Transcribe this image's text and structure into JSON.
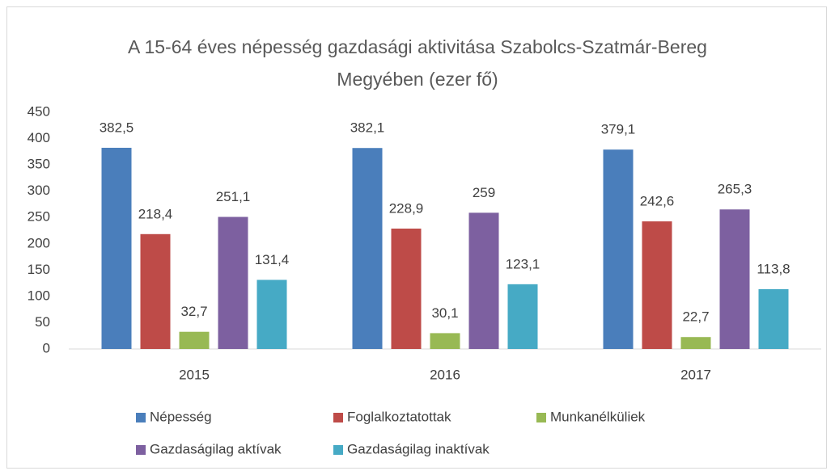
{
  "chart_data": {
    "type": "bar",
    "title": "A 15-64 éves népesség gazdasági aktivitása Szabolcs-Szatmár-Bereg Megyében (ezer fő)",
    "categories": [
      "2015",
      "2016",
      "2017"
    ],
    "series": [
      {
        "name": "Népesség",
        "color": "#4a7ebb",
        "values": [
          382.5,
          382.1,
          379.1
        ],
        "value_labels": [
          "382,5",
          "382,1",
          "379,1"
        ]
      },
      {
        "name": "Foglalkoztatottak",
        "color": "#be4b48",
        "values": [
          218.4,
          228.9,
          242.6
        ],
        "value_labels": [
          "218,4",
          "228,9",
          "242,6"
        ]
      },
      {
        "name": "Munkanélküliek",
        "color": "#98b954",
        "values": [
          32.7,
          30.1,
          22.7
        ],
        "value_labels": [
          "32,7",
          "30,1",
          "22,7"
        ]
      },
      {
        "name": "Gazdaságilag aktívak",
        "color": "#7d60a0",
        "values": [
          251.1,
          259,
          265.3
        ],
        "value_labels": [
          "251,1",
          "259",
          "265,3"
        ]
      },
      {
        "name": "Gazdaságilag inaktívak",
        "color": "#46aac5",
        "values": [
          131.4,
          123.1,
          113.8
        ],
        "value_labels": [
          "131,4",
          "123,1",
          "113,8"
        ]
      }
    ],
    "ylim": [
      0,
      450
    ],
    "yticks": [
      0,
      50,
      100,
      150,
      200,
      250,
      300,
      350,
      400,
      450
    ],
    "grid": false,
    "legend": "bottom"
  }
}
